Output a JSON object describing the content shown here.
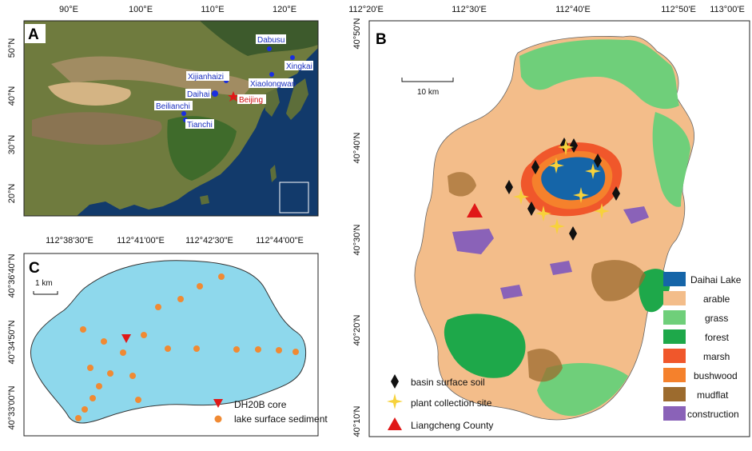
{
  "panel_a": {
    "letter": "A",
    "lon_ticks": [
      "90°E",
      "100°E",
      "110°E",
      "120°E"
    ],
    "lat_ticks": [
      "50°N",
      "40°N",
      "30°N",
      "20°N"
    ],
    "places": [
      {
        "name": "Dabusu",
        "color": "blue"
      },
      {
        "name": "Xingkai",
        "color": "blue"
      },
      {
        "name": "Xijianhaizi",
        "color": "blue"
      },
      {
        "name": "Xiaolongwan",
        "color": "blue"
      },
      {
        "name": "Daihai",
        "color": "blue"
      },
      {
        "name": "Beijing",
        "color": "red"
      },
      {
        "name": "Beilianchi",
        "color": "blue"
      },
      {
        "name": "Tianchi",
        "color": "blue"
      }
    ]
  },
  "panel_b": {
    "letter": "B",
    "lon_ticks": [
      "112°20'E",
      "112°30'E",
      "112°40'E",
      "112°50'E",
      "113°00'E"
    ],
    "lat_ticks": [
      "40°50'N",
      "40°40'N",
      "40°30'N",
      "40°20'N",
      "40°10'N"
    ],
    "scale": "10 km",
    "landuse_legend": [
      {
        "label": "Daihai Lake",
        "color": "#1565a8"
      },
      {
        "label": "arable",
        "color": "#f3bd8a"
      },
      {
        "label": "grass",
        "color": "#6fcf7a"
      },
      {
        "label": "forest",
        "color": "#1ea84a"
      },
      {
        "label": "marsh",
        "color": "#f0572b"
      },
      {
        "label": "bushwood",
        "color": "#f5812c"
      },
      {
        "label": "mudflat",
        "color": "#9c6b2e"
      },
      {
        "label": "construction",
        "color": "#8a62b8"
      }
    ],
    "symbol_legend": [
      {
        "label": "basin surface soil",
        "symbol": "black-diamond"
      },
      {
        "label": "plant collection site",
        "symbol": "yellow-star"
      },
      {
        "label": "Liangcheng County",
        "symbol": "red-triangle"
      }
    ]
  },
  "panel_c": {
    "letter": "C",
    "lon_ticks": [
      "112°38'30\"E",
      "112°41'00\"E",
      "112°42'30\"E",
      "112°44'00\"E"
    ],
    "lat_ticks": [
      "40°36'40\"N",
      "40°34'50\"N",
      "40°33'00\"N"
    ],
    "scale": "1 km",
    "legend": [
      {
        "label": "DH20B core",
        "symbol": "red-down-triangle"
      },
      {
        "label": "lake surface sediment",
        "symbol": "orange-circle"
      }
    ]
  }
}
